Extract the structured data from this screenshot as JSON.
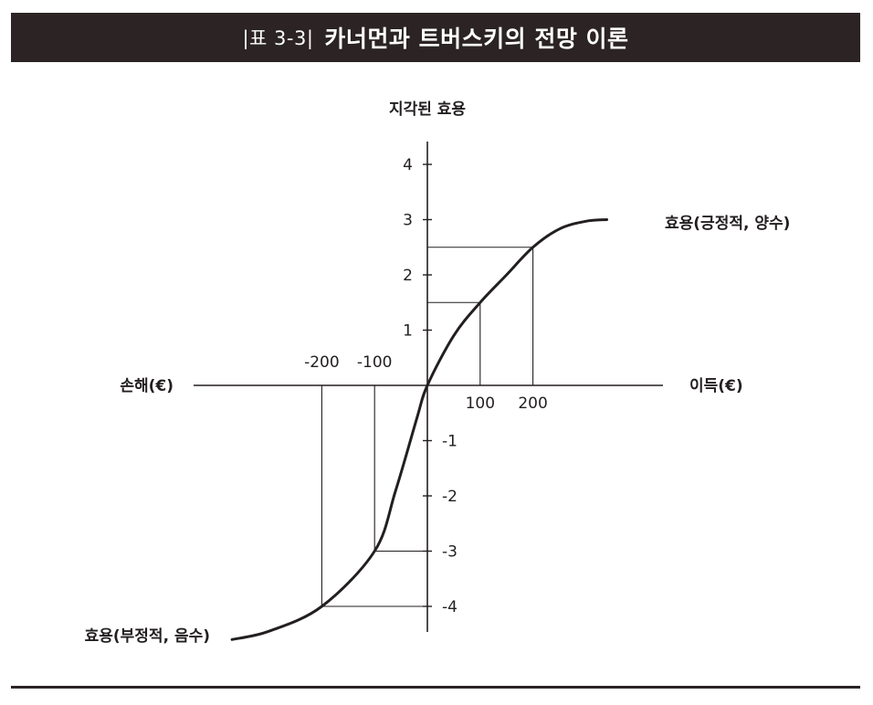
{
  "header": {
    "tag": "|표 3-3|",
    "title": "카너먼과 트버스키의 전망 이론"
  },
  "diagram": {
    "y_axis_label": "지각된 효용",
    "x_axis_positive_label": "이득(€)",
    "x_axis_negative_label": "손해(€)",
    "curve_positive_label": "효용(긍정적, 양수)",
    "curve_negative_label": "효용(부정적, 음수)",
    "x_ticks": [
      {
        "value": -200,
        "label": "-200"
      },
      {
        "value": -100,
        "label": "-100"
      },
      {
        "value": 100,
        "label": "100"
      },
      {
        "value": 200,
        "label": "200"
      }
    ],
    "y_ticks": [
      {
        "value": 4,
        "label": "4"
      },
      {
        "value": 3,
        "label": "3"
      },
      {
        "value": 2,
        "label": "2"
      },
      {
        "value": 1,
        "label": "1"
      },
      {
        "value": -1,
        "label": "-1"
      },
      {
        "value": -2,
        "label": "-2"
      },
      {
        "value": -3,
        "label": "-3"
      },
      {
        "value": -4,
        "label": "-4"
      }
    ],
    "reference_points": [
      {
        "x": 100,
        "y": 1.5
      },
      {
        "x": 200,
        "y": 2.5
      },
      {
        "x": -100,
        "y": -3
      },
      {
        "x": -200,
        "y": -4
      }
    ],
    "curve": [
      {
        "x": -370,
        "y": -4.6
      },
      {
        "x": -300,
        "y": -4.45
      },
      {
        "x": -200,
        "y": -4
      },
      {
        "x": -100,
        "y": -3
      },
      {
        "x": -60,
        "y": -1.9
      },
      {
        "x": -20,
        "y": -0.6
      },
      {
        "x": 0,
        "y": 0
      },
      {
        "x": 50,
        "y": 0.9
      },
      {
        "x": 100,
        "y": 1.5
      },
      {
        "x": 150,
        "y": 2.0
      },
      {
        "x": 200,
        "y": 2.5
      },
      {
        "x": 250,
        "y": 2.83
      },
      {
        "x": 300,
        "y": 2.97
      },
      {
        "x": 340,
        "y": 3.0
      }
    ]
  }
}
